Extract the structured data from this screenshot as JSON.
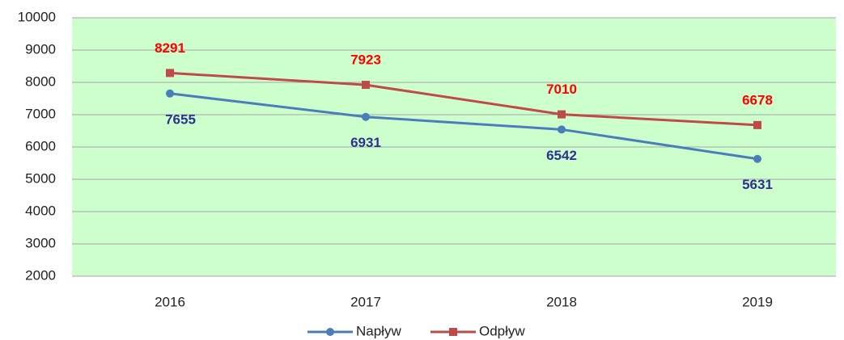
{
  "chart_data": {
    "type": "line",
    "categories": [
      "2016",
      "2017",
      "2018",
      "2019"
    ],
    "series": [
      {
        "name": "Napływ",
        "color": "#4a7ebb",
        "label_color": "#2e3192",
        "values": [
          7655,
          6931,
          6542,
          5631
        ]
      },
      {
        "name": "Odpływ",
        "color": "#be4b48",
        "label_color": "#ff0000",
        "values": [
          8291,
          7923,
          7010,
          6678
        ]
      }
    ],
    "ylim": [
      2000,
      10000
    ],
    "yticks": [
      2000,
      3000,
      4000,
      5000,
      6000,
      7000,
      8000,
      9000,
      10000
    ],
    "grid": true,
    "plot_background": "#ccffcc",
    "legend": "bottom"
  }
}
